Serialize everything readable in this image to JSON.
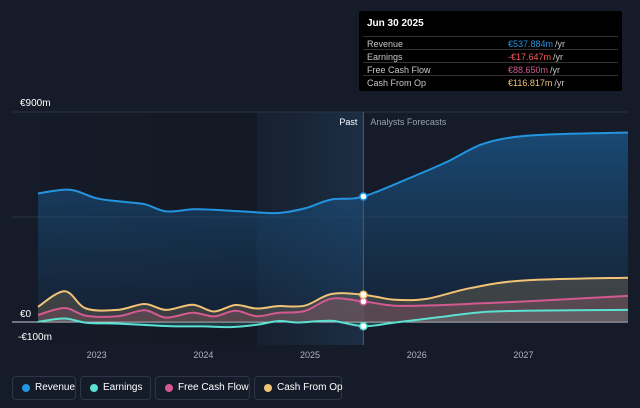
{
  "chart_data": {
    "type": "area",
    "currency_symbol": "€",
    "y_axis": {
      "ylim": [
        -100,
        900
      ],
      "tick_labels": [
        "€900m",
        "€0",
        "-€100m"
      ]
    },
    "x_axis": {
      "start": 2022.45,
      "end": 2027.98,
      "tick_labels": [
        "2023",
        "2024",
        "2025",
        "2026",
        "2027"
      ],
      "tick_values": [
        2023,
        2024,
        2025,
        2026,
        2027
      ]
    },
    "divider": {
      "at": 2025.5,
      "past_label": "Past",
      "future_label": "Analysts Forecasts"
    },
    "highlight_band": [
      2024.5,
      2025.5
    ],
    "series": [
      {
        "name": "Revenue",
        "color": "#2394df",
        "points": [
          [
            2022.45,
            551
          ],
          [
            2022.75,
            567
          ],
          [
            2023.0,
            530
          ],
          [
            2023.25,
            515
          ],
          [
            2023.45,
            505
          ],
          [
            2023.65,
            474
          ],
          [
            2023.9,
            483
          ],
          [
            2024.1,
            481
          ],
          [
            2024.4,
            473
          ],
          [
            2024.7,
            467
          ],
          [
            2024.95,
            487
          ],
          [
            2025.2,
            525
          ],
          [
            2025.5,
            538
          ],
          [
            2026.0,
            630
          ],
          [
            2026.3,
            690
          ],
          [
            2026.6,
            760
          ],
          [
            2026.9,
            792
          ],
          [
            2027.3,
            805
          ],
          [
            2027.98,
            812
          ]
        ]
      },
      {
        "name": "Earnings",
        "color": "#5ce0d2",
        "points": [
          [
            2022.45,
            1
          ],
          [
            2022.7,
            15
          ],
          [
            2022.9,
            -3
          ],
          [
            2023.2,
            -7
          ],
          [
            2023.5,
            -14
          ],
          [
            2023.7,
            -18
          ],
          [
            2024.0,
            -19
          ],
          [
            2024.25,
            -22
          ],
          [
            2024.5,
            -12
          ],
          [
            2024.7,
            4
          ],
          [
            2024.9,
            -2
          ],
          [
            2025.2,
            5
          ],
          [
            2025.5,
            -18
          ],
          [
            2025.8,
            -2
          ],
          [
            2026.2,
            20
          ],
          [
            2026.6,
            42
          ],
          [
            2027.0,
            48
          ],
          [
            2027.98,
            52
          ]
        ]
      },
      {
        "name": "Free Cash Flow",
        "color": "#d25a90",
        "points": [
          [
            2022.45,
            30
          ],
          [
            2022.7,
            60
          ],
          [
            2022.9,
            27
          ],
          [
            2023.2,
            25
          ],
          [
            2023.45,
            50
          ],
          [
            2023.65,
            19
          ],
          [
            2023.9,
            40
          ],
          [
            2024.1,
            24
          ],
          [
            2024.3,
            48
          ],
          [
            2024.5,
            25
          ],
          [
            2024.7,
            39
          ],
          [
            2024.95,
            47
          ],
          [
            2025.2,
            100
          ],
          [
            2025.5,
            88
          ],
          [
            2025.8,
            70
          ],
          [
            2026.2,
            72
          ],
          [
            2026.6,
            80
          ],
          [
            2027.0,
            88
          ],
          [
            2027.98,
            112
          ]
        ]
      },
      {
        "name": "Cash From Op",
        "color": "#f0c376",
        "points": [
          [
            2022.45,
            65
          ],
          [
            2022.7,
            132
          ],
          [
            2022.9,
            58
          ],
          [
            2023.2,
            52
          ],
          [
            2023.45,
            77
          ],
          [
            2023.65,
            52
          ],
          [
            2023.9,
            74
          ],
          [
            2024.1,
            45
          ],
          [
            2024.3,
            73
          ],
          [
            2024.5,
            58
          ],
          [
            2024.7,
            68
          ],
          [
            2024.95,
            70
          ],
          [
            2025.2,
            120
          ],
          [
            2025.5,
            117
          ],
          [
            2025.8,
            95
          ],
          [
            2026.1,
            100
          ],
          [
            2026.5,
            145
          ],
          [
            2027.0,
            178
          ],
          [
            2027.98,
            190
          ]
        ]
      }
    ]
  },
  "tooltip": {
    "date": "Jun 30 2025",
    "rows": [
      {
        "label": "Revenue",
        "value": "€537.884m",
        "unit": "/yr",
        "color": "#2394df"
      },
      {
        "label": "Earnings",
        "value": "-€17.647m",
        "unit": "/yr",
        "color": "#ff5a5a"
      },
      {
        "label": "Free Cash Flow",
        "value": "€88.650m",
        "unit": "/yr",
        "color": "#d25a90"
      },
      {
        "label": "Cash From Op",
        "value": "€116.817m",
        "unit": "/yr",
        "color": "#f0c376"
      }
    ]
  },
  "legend": [
    {
      "label": "Revenue",
      "color": "#2394df"
    },
    {
      "label": "Earnings",
      "color": "#5ce0d2"
    },
    {
      "label": "Free Cash Flow",
      "color": "#d25a90"
    },
    {
      "label": "Cash From Op",
      "color": "#f0c376"
    }
  ]
}
